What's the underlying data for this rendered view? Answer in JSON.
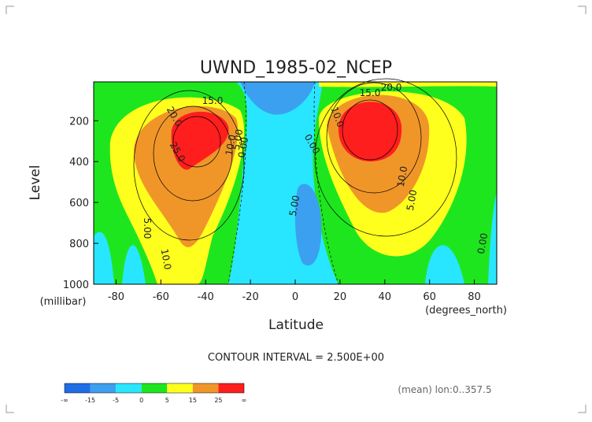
{
  "chart_data": {
    "type": "contour",
    "title": "UWND_1985-02_NCEP",
    "x_label": "Latitude",
    "y_label": "Level",
    "x_unit": "(degrees_north)",
    "y_unit": "(millibar)",
    "xlim": [
      -90,
      90
    ],
    "xticks": [
      -80,
      -60,
      -40,
      -20,
      0,
      20,
      40,
      60,
      80
    ],
    "ylim": [
      1000,
      10
    ],
    "yticks": [
      200,
      400,
      600,
      800,
      1000
    ],
    "contour_interval": "CONTOUR INTERVAL = 2.500E+00",
    "footnote": "(mean) lon:0..357.5",
    "contour_labels": [
      "15.0",
      "20.0",
      "25.0",
      "10.0",
      "5.00",
      "10.0",
      "5.00",
      "0.00",
      "10.0",
      "15.0",
      "20.0",
      "0.00",
      "5.00",
      "10.0",
      "5.00",
      "0.00"
    ],
    "colorbar": {
      "levels": [
        "-∞",
        -15,
        -5,
        0,
        5,
        15,
        25,
        "∞"
      ],
      "colors": [
        "#1e6ee6",
        "#3ca0f0",
        "#28e6ff",
        "#1ee61e",
        "#ffff1e",
        "#f09628",
        "#ff1e1e"
      ]
    }
  }
}
